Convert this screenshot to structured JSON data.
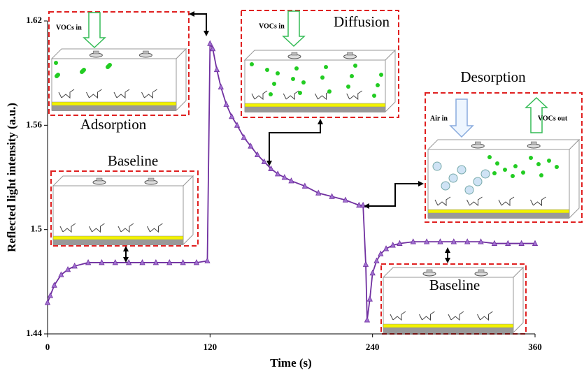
{
  "chart_data": {
    "type": "line",
    "xlabel": "Time (s)",
    "ylabel": "Reflected light intensity (a.u.)",
    "x": [
      0,
      2,
      5,
      10,
      15,
      20,
      30,
      40,
      50,
      60,
      70,
      80,
      90,
      100,
      110,
      118,
      120,
      122,
      125,
      128,
      132,
      136,
      140,
      145,
      150,
      155,
      160,
      165,
      170,
      175,
      180,
      190,
      200,
      210,
      220,
      230,
      233,
      235,
      236,
      238,
      240,
      243,
      246,
      250,
      255,
      260,
      270,
      280,
      290,
      300,
      310,
      320,
      330,
      340,
      350,
      360
    ],
    "values": [
      1.458,
      1.462,
      1.468,
      1.474,
      1.477,
      1.479,
      1.481,
      1.481,
      1.481,
      1.481,
      1.481,
      1.481,
      1.481,
      1.481,
      1.481,
      1.482,
      1.607,
      1.604,
      1.592,
      1.582,
      1.572,
      1.565,
      1.56,
      1.553,
      1.548,
      1.543,
      1.539,
      1.535,
      1.532,
      1.53,
      1.528,
      1.525,
      1.521,
      1.519,
      1.517,
      1.514,
      1.514,
      1.48,
      1.448,
      1.46,
      1.475,
      1.482,
      1.486,
      1.489,
      1.491,
      1.492,
      1.493,
      1.493,
      1.493,
      1.493,
      1.493,
      1.493,
      1.492,
      1.492,
      1.492,
      1.492
    ],
    "color": "#7030a0",
    "xlim": [
      0,
      360
    ],
    "xticks": [
      0,
      120,
      240,
      360
    ],
    "ylim": [
      1.44,
      1.62
    ],
    "yticks": [
      1.44,
      1.5,
      1.56,
      1.62
    ],
    "annotations": [
      "VOCs in",
      "Adsorption",
      "VOCs in",
      "Diffusion",
      "Desorption",
      "Air in",
      "VOCs out",
      "Baseline",
      "Baseline"
    ]
  }
}
